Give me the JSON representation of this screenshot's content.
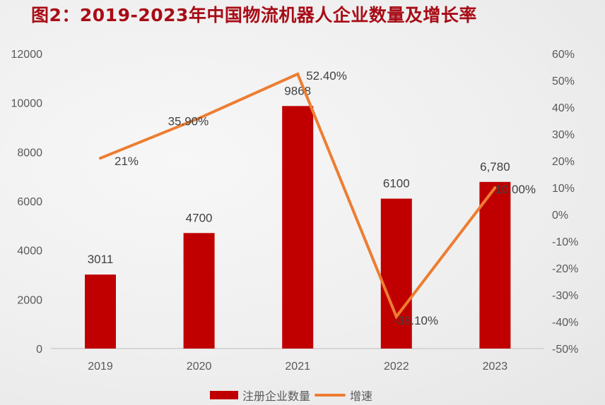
{
  "title": "图2：2019-2023年中国物流机器人企业数量及增长率",
  "chart_data": {
    "type": "bar+line",
    "title": "图2：2019-2023年中国物流机器人企业数量及增长率",
    "categories": [
      "2019",
      "2020",
      "2021",
      "2022",
      "2023"
    ],
    "series": [
      {
        "name": "注册企业数量",
        "type": "bar",
        "axis": "left",
        "color": "#c00000",
        "values": [
          3011,
          4700,
          9868,
          6100,
          6780
        ],
        "labels": [
          "3011",
          "4700",
          "9868",
          "6100",
          "6,780"
        ]
      },
      {
        "name": "增速",
        "type": "line",
        "axis": "right",
        "color": "#ed7d31",
        "values": [
          21,
          35.9,
          52.4,
          -38.1,
          10
        ],
        "labels": [
          "21%",
          "35.90%",
          "52.40%",
          "-38.10%",
          "10.00%"
        ]
      }
    ],
    "y_left": {
      "ylim": [
        0,
        12000
      ],
      "ticks": [
        "0",
        "2000",
        "4000",
        "6000",
        "8000",
        "10000",
        "12000"
      ]
    },
    "y_right": {
      "ylim": [
        -50,
        60
      ],
      "ticks": [
        "-50%",
        "-40%",
        "-30%",
        "-20%",
        "-10%",
        "0%",
        "10%",
        "20%",
        "30%",
        "40%",
        "50%",
        "60%"
      ]
    },
    "grid": false,
    "legend": "bottom-center"
  },
  "legend": {
    "bar_label": "注册企业数量",
    "line_label": "增速"
  }
}
